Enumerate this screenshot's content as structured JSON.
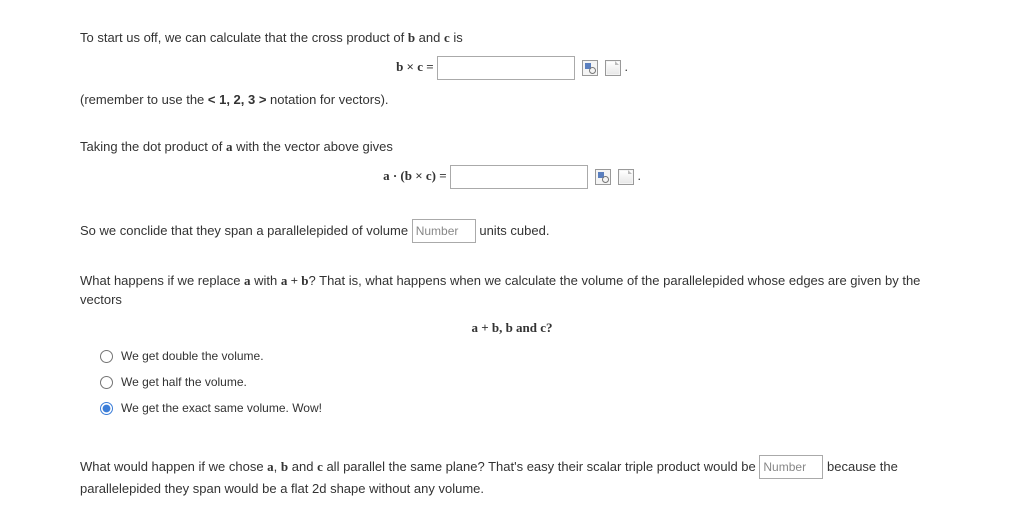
{
  "para1_pre": "To start us off, we can calculate that the cross product of ",
  "b": "b",
  "and_word": " and ",
  "c": "c",
  "is_word": " is",
  "eq1_lhs": "b × c = ",
  "period": ".",
  "para2_pre": "(remember to use the ",
  "para2_mid": "< 1, 2, 3 >",
  "para2_post": " notation for vectors).",
  "para3_pre": "Taking the dot product of ",
  "a": "a",
  "para3_post": " with the vector above gives",
  "eq2_lhs": "a · (b × c) = ",
  "para4_pre": "So we conclide that they span a parallelepided of volume ",
  "num_placeholder": "Number",
  "para4_post": " units cubed.",
  "para5_pre": "What happens if we replace ",
  "para5_mid1": " with ",
  "aplusb": "a + b",
  "para5_mid2": "? That is, what happens when we calculate the volume of the parallelepided whose edges are given by the vectors",
  "eq3": "a + b, b  and  c?",
  "opt1": "We get double the volume.",
  "opt2": "We get half the volume.",
  "opt3": "We get the exact same volume. Wow!",
  "selected_option": 2,
  "para6_pre": "What would happen if we chose ",
  "para6_mid1": ", ",
  "para6_mid2": " all parallel the same plane? That's easy their scalar triple product would be ",
  "para6_post": " because the parallelepided they span would be a flat 2d shape without any volume."
}
